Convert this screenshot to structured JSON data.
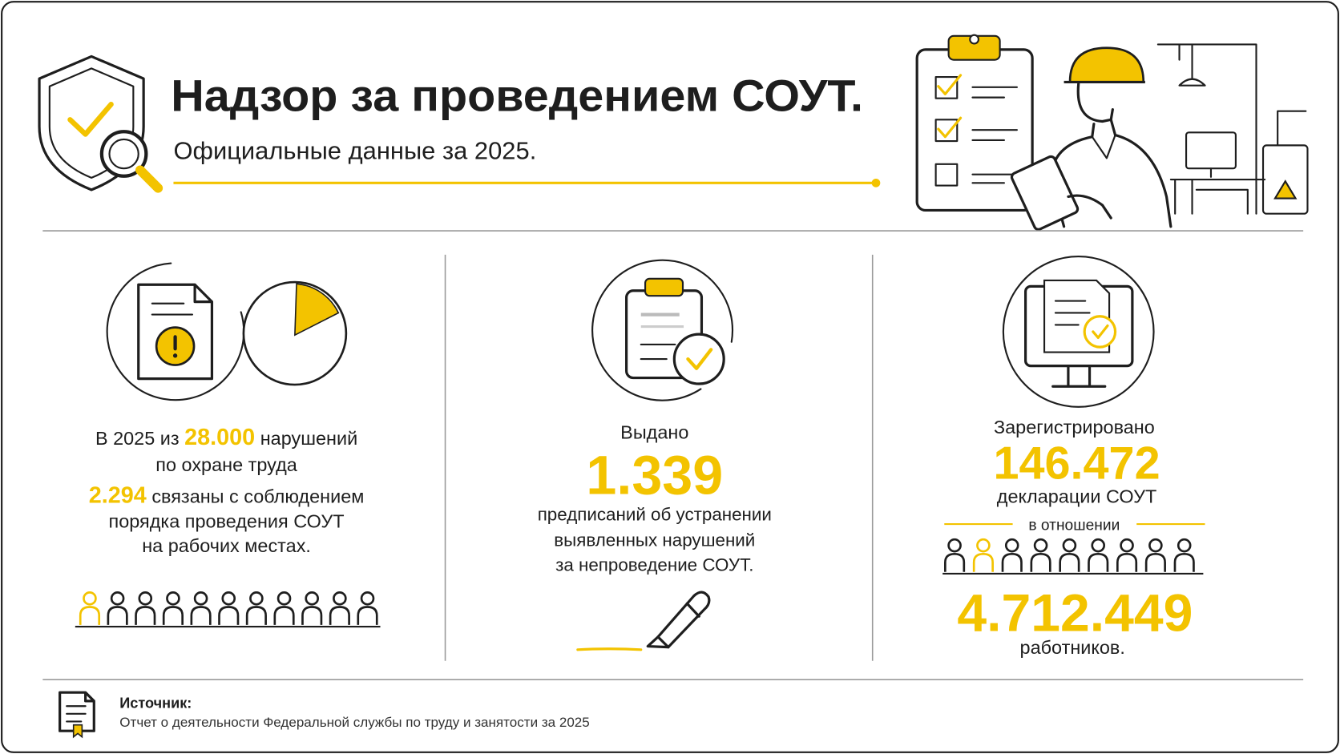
{
  "header": {
    "title": "Надзор за проведением СОУТ.",
    "subtitle": "Официальные данные за 2025."
  },
  "panels": [
    {
      "intro": "В 2025 из",
      "total": "28.000",
      "total_label": "нарушений",
      "line2": "по охране труда",
      "count": "2.294",
      "count_label": "связаны с соблюдением",
      "line4": "порядка проведения СОУТ",
      "line5": "на рабочих местах."
    },
    {
      "label": "Выдано",
      "value": "1.339",
      "lines": [
        "предписаний об устранении",
        "выявленных нарушений",
        "за непроведение СОУТ."
      ]
    },
    {
      "label": "Зарегистрировано",
      "value": "146.472",
      "value_label": "декларации СОУТ",
      "relation": "в отношении",
      "value2": "4.712.449",
      "value2_label": "работников."
    }
  ],
  "footer": {
    "label": "Источник:",
    "text": "Отчет о деятельности Федеральной службы по труду и занятости за 2025"
  }
}
